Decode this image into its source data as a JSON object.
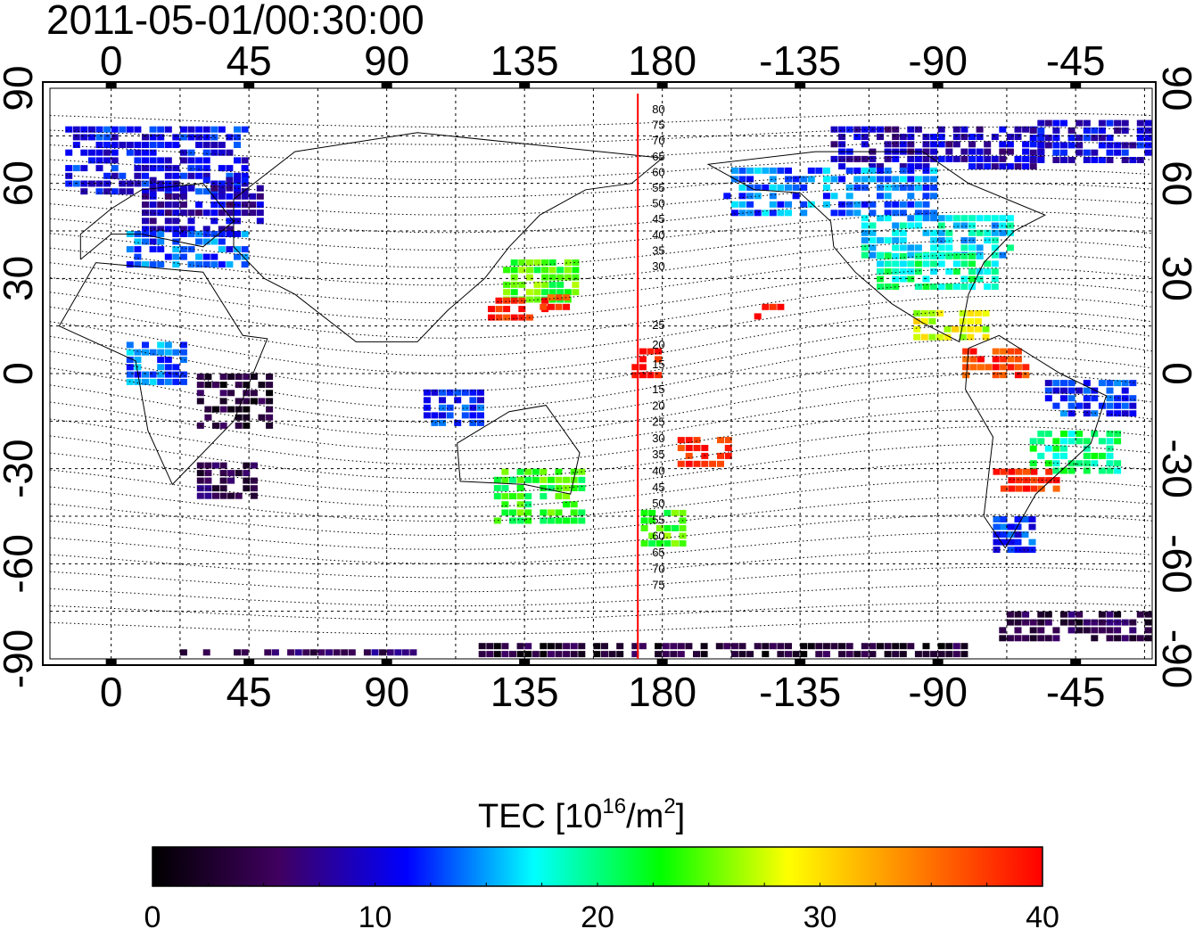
{
  "title": "2011-05-01/00:30:00",
  "map": {
    "top_lon_ticks": [
      "0",
      "45",
      "90",
      "135",
      "180",
      "-135",
      "-90",
      "-45"
    ],
    "bottom_lon_ticks": [
      "0",
      "45",
      "90",
      "135",
      "180",
      "-135",
      "-90",
      "-45"
    ],
    "left_lat_ticks": [
      "90",
      "60",
      "30",
      "0",
      "-30",
      "-60",
      "-90"
    ],
    "right_lat_ticks": [
      "90",
      "60",
      "30",
      "0",
      "-30",
      "-60",
      "-90"
    ],
    "lon_range": [
      -20,
      340
    ],
    "lat_range": [
      -90,
      90
    ],
    "grid": "dotted",
    "meridian_marker_lon": 172,
    "meridian_marker_color": "#ff0000",
    "north_mlat_labels": [
      "80",
      "75",
      "70",
      "65",
      "60",
      "55",
      "50",
      "45",
      "40",
      "35",
      "30",
      "25",
      "20",
      "15"
    ],
    "south_mlat_labels": [
      "15",
      "20",
      "25",
      "30",
      "35",
      "40",
      "45",
      "50",
      "55",
      "60",
      "65",
      "70",
      "75"
    ]
  },
  "colorbar": {
    "label_prefix": "TEC  [10",
    "label_exp": "16",
    "label_mid": "/m",
    "label_exp2": "2",
    "label_suffix": "]",
    "ticks": [
      "0",
      "10",
      "20",
      "30",
      "40"
    ],
    "min": 0,
    "max": 40,
    "colors": [
      "#000000",
      "#400060",
      "#0000ff",
      "#00ffff",
      "#00ff00",
      "#ffff00",
      "#ff8000",
      "#ff0000"
    ]
  },
  "tec_regions": [
    {
      "lon": -15,
      "lat": 78,
      "w": 60,
      "h": 22,
      "tec": 11
    },
    {
      "lon": 10,
      "lat": 62,
      "w": 40,
      "h": 18,
      "tec": 9
    },
    {
      "lon": 235,
      "lat": 78,
      "w": 70,
      "h": 14,
      "tec": 9
    },
    {
      "lon": 300,
      "lat": 80,
      "w": 40,
      "h": 14,
      "tec": 10
    },
    {
      "lon": 200,
      "lat": 65,
      "w": 70,
      "h": 16,
      "tec": 14
    },
    {
      "lon": 245,
      "lat": 50,
      "w": 50,
      "h": 14,
      "tec": 17
    },
    {
      "lon": 250,
      "lat": 38,
      "w": 40,
      "h": 12,
      "tec": 19
    },
    {
      "lon": 262,
      "lat": 20,
      "w": 25,
      "h": 10,
      "tec": 28
    },
    {
      "lon": 278,
      "lat": 8,
      "w": 22,
      "h": 10,
      "tec": 38
    },
    {
      "lon": 305,
      "lat": -2,
      "w": 30,
      "h": 12,
      "tec": 12
    },
    {
      "lon": 300,
      "lat": -18,
      "w": 30,
      "h": 14,
      "tec": 20
    },
    {
      "lon": 288,
      "lat": -30,
      "w": 22,
      "h": 8,
      "tec": 38
    },
    {
      "lon": 288,
      "lat": -45,
      "w": 14,
      "h": 12,
      "tec": 12
    },
    {
      "lon": 5,
      "lat": 45,
      "w": 40,
      "h": 12,
      "tec": 13
    },
    {
      "lon": 5,
      "lat": 10,
      "w": 20,
      "h": 14,
      "tec": 14
    },
    {
      "lon": 28,
      "lat": 0,
      "w": 25,
      "h": 18,
      "tec": 3
    },
    {
      "lon": 28,
      "lat": -28,
      "w": 20,
      "h": 12,
      "tec": 5
    },
    {
      "lon": 102,
      "lat": -5,
      "w": 20,
      "h": 12,
      "tec": 12
    },
    {
      "lon": 128,
      "lat": 36,
      "w": 25,
      "h": 14,
      "tec": 24
    },
    {
      "lon": 123,
      "lat": 24,
      "w": 20,
      "h": 8,
      "tec": 39
    },
    {
      "lon": 140,
      "lat": 25,
      "w": 10,
      "h": 6,
      "tec": 37
    },
    {
      "lon": 170,
      "lat": 8,
      "w": 10,
      "h": 10,
      "tec": 40
    },
    {
      "lon": 125,
      "lat": -30,
      "w": 30,
      "h": 18,
      "tec": 23
    },
    {
      "lon": 173,
      "lat": -43,
      "w": 15,
      "h": 12,
      "tec": 24
    },
    {
      "lon": 185,
      "lat": -20,
      "w": 18,
      "h": 10,
      "tec": 39
    },
    {
      "lon": 210,
      "lat": 22,
      "w": 10,
      "h": 6,
      "tec": 40
    },
    {
      "lon": 120,
      "lat": -85,
      "w": 160,
      "h": 10,
      "tec": 3
    },
    {
      "lon": 290,
      "lat": -75,
      "w": 60,
      "h": 10,
      "tec": 4
    },
    {
      "lon": 20,
      "lat": -87,
      "w": 80,
      "h": 6,
      "tec": 6
    }
  ]
}
